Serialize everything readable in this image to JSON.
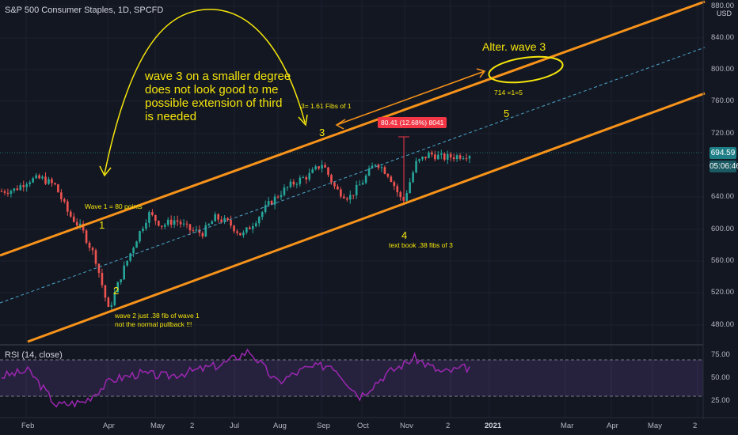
{
  "header": {
    "symbol_title": "S&P 500 Consumer Staples, 1D, SPCFD",
    "currency": "USD"
  },
  "price_axis": {
    "labels": [
      "880.00",
      "840.00",
      "800.00",
      "760.00",
      "720.00",
      "680.00",
      "640.00",
      "600.00",
      "560.00",
      "520.00",
      "480.00"
    ],
    "current_price": "694.59",
    "countdown": "05:06:46"
  },
  "rsi": {
    "title": "RSI (14, close)",
    "labels": [
      "75.00",
      "50.00",
      "25.00"
    ],
    "overbought": 70,
    "oversold": 30
  },
  "time_axis": [
    "Feb",
    "Apr",
    "May",
    "2",
    "Jul",
    "Aug",
    "Sep",
    "Oct",
    "Nov",
    "2",
    "2021",
    "Mar",
    "Apr",
    "May",
    "2"
  ],
  "annotations": {
    "wave3_comment": [
      "wave 3 on a smaller degree",
      "does not look good to me",
      "possible extension of third",
      "is needed"
    ],
    "fib_161": "3= 1.61 Fibs of 1",
    "wave3": "3",
    "measure_label": "80.41 (12.68%) 8041",
    "wave5": "5",
    "alter_wave3": "Alter. wave 3",
    "alt_calc": "714 =1=5",
    "wave1_points": "Wave 1 = 80 points",
    "wave1": "1",
    "wave2": "2",
    "wave2_comment": [
      "wave 2 just .38 fib of wave 1",
      "not the normal pullback !!!"
    ],
    "wave4": "4",
    "wave4_comment": "text book .38 fibs of 3"
  },
  "colors": {
    "background": "#131722",
    "up": "#26a69a",
    "down": "#ef5350",
    "channel": "#f7931a",
    "annotation": "#f5e50b",
    "rsi": "#9c27b0",
    "dashed": "#4ba3c7"
  },
  "chart_data": {
    "type": "candlestick",
    "title": "S&P 500 Consumer Staples, 1D, SPCFD",
    "ylim": [
      465,
      885
    ],
    "path_points": [
      [
        "Jan",
        648
      ],
      [
        "Jan",
        650
      ],
      [
        "Feb",
        662
      ],
      [
        "Feb",
        664
      ],
      [
        "Feb",
        655
      ],
      [
        "Mar",
        620
      ],
      [
        "Mar",
        600
      ],
      [
        "Mar",
        565
      ],
      [
        "Mar",
        498
      ],
      [
        "Mar",
        545
      ],
      [
        "Apr",
        585
      ],
      [
        "Apr",
        620
      ],
      [
        "Apr",
        605
      ],
      [
        "Apr",
        612
      ],
      [
        "May",
        600
      ],
      [
        "May",
        595
      ],
      [
        "Jun",
        615
      ],
      [
        "Jun",
        608
      ],
      [
        "Jun",
        592
      ],
      [
        "Jul",
        612
      ],
      [
        "Jul",
        632
      ],
      [
        "Aug",
        648
      ],
      [
        "Aug",
        660
      ],
      [
        "Aug",
        668
      ],
      [
        "Sep",
        683
      ],
      [
        "Sep",
        650
      ],
      [
        "Sep",
        640
      ],
      [
        "Oct",
        660
      ],
      [
        "Oct",
        685
      ],
      [
        "Oct",
        668
      ],
      [
        "Oct",
        633
      ],
      [
        "Nov",
        683
      ],
      [
        "Nov",
        695
      ],
      [
        "Nov",
        690
      ],
      [
        "Dec",
        692
      ],
      [
        "Dec",
        694.59
      ]
    ],
    "rsi_points": [
      [
        "Feb",
        52
      ],
      [
        "Feb",
        58
      ],
      [
        "Mar",
        20
      ],
      [
        "Mar",
        24
      ],
      [
        "Apr",
        48
      ],
      [
        "May",
        55
      ],
      [
        "Jun",
        52
      ],
      [
        "Jul",
        58
      ],
      [
        "Aug",
        65
      ],
      [
        "Sep",
        80
      ],
      [
        "Sep",
        45
      ],
      [
        "Oct",
        60
      ],
      [
        "Oct",
        65
      ],
      [
        "Nov",
        30
      ],
      [
        "Nov",
        55
      ],
      [
        "Nov",
        72
      ],
      [
        "Dec",
        56
      ],
      [
        "Dec",
        62
      ]
    ]
  }
}
